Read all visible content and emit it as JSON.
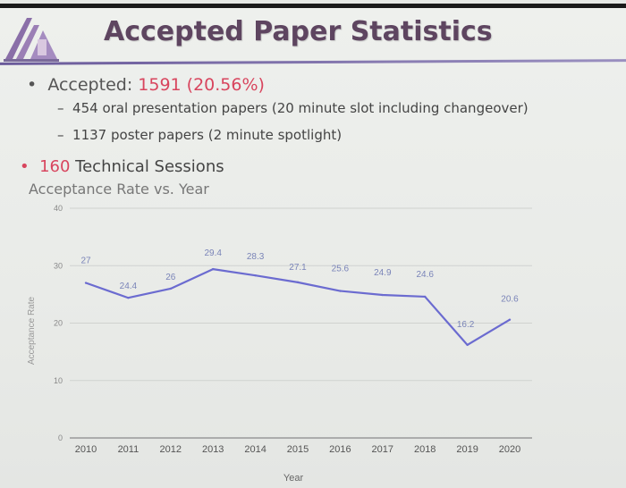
{
  "slide": {
    "title": "Accepted Paper Statistics",
    "bullets": [
      {
        "marker": "•",
        "label": "Accepted:",
        "highlight": "1591 (20.56%)"
      },
      {
        "marker": "•",
        "highlight": "160",
        "label": "Technical Sessions"
      }
    ],
    "sub_bullets": [
      {
        "marker": "–",
        "text": "454 oral presentation papers (20 minute slot including changeover)"
      },
      {
        "marker": "–",
        "text": "1137 poster papers (2 minute spotlight)"
      }
    ]
  },
  "colors": {
    "title": "#5e4560",
    "highlight": "#d8455e",
    "line": "#6b6bd0",
    "labels": "#7a84b8"
  },
  "chart_data": {
    "type": "line",
    "title": "Acceptance Rate vs. Year",
    "xlabel": "Year",
    "ylabel": "Acceptance Rate",
    "x": [
      "2010",
      "2011",
      "2012",
      "2013",
      "2014",
      "2015",
      "2016",
      "2017",
      "2018",
      "2019",
      "2020"
    ],
    "values": [
      27,
      24.4,
      26,
      29.4,
      28.3,
      27.1,
      25.6,
      24.9,
      24.6,
      16.2,
      20.6
    ],
    "data_labels": [
      "27",
      "24.4",
      "26",
      "29.4",
      "28.3",
      "27.1",
      "25.6",
      "24.9",
      "24.6",
      "16.2",
      "20.6"
    ],
    "yticks": [
      "0",
      "10",
      "20",
      "30",
      "40"
    ],
    "ylim": [
      0,
      40
    ],
    "grid": true
  }
}
